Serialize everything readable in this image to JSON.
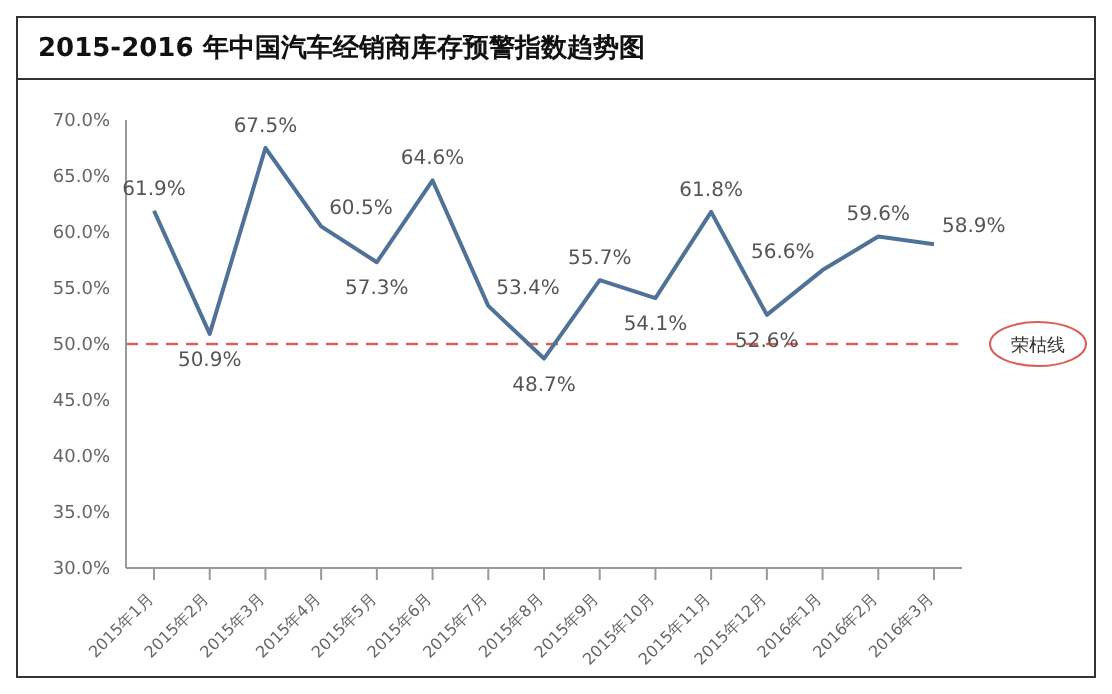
{
  "chart_data": {
    "type": "line",
    "title": "2015-2016 年中国汽车经销商库存预警指数趋势图",
    "categories": [
      "2015年1月",
      "2015年2月",
      "2015年3月",
      "2015年4月",
      "2015年5月",
      "2015年6月",
      "2015年7月",
      "2015年8月",
      "2015年9月",
      "2015年10月",
      "2015年11月",
      "2015年12月",
      "2016年1月",
      "2016年2月",
      "2016年3月"
    ],
    "series": [
      {
        "color": "#4f7298",
        "values": [
          61.9,
          50.9,
          67.5,
          60.5,
          57.3,
          64.6,
          53.4,
          48.7,
          55.7,
          54.1,
          61.8,
          52.6,
          56.6,
          59.6,
          58.9
        ],
        "value_labels": [
          "61.9%",
          "50.9%",
          "67.5%",
          "60.5%",
          "57.3%",
          "64.6%",
          "53.4%",
          "48.7%",
          "55.7%",
          "54.1%",
          "61.8%",
          "52.6%",
          "56.6%",
          "59.6%",
          "58.9%"
        ]
      }
    ],
    "ylim": [
      30,
      70
    ],
    "yticks": [
      {
        "value": 30,
        "label": "30.0%"
      },
      {
        "value": 35,
        "label": "35.0%"
      },
      {
        "value": 40,
        "label": "40.0%"
      },
      {
        "value": 45,
        "label": "45.0%"
      },
      {
        "value": 50,
        "label": "50.0%"
      },
      {
        "value": 55,
        "label": "55.0%"
      },
      {
        "value": 60,
        "label": "60.0%"
      },
      {
        "value": 65,
        "label": "65.0%"
      },
      {
        "value": 70,
        "label": "70.0%"
      }
    ],
    "ref_lines": [
      {
        "axis": "y",
        "value": 50,
        "label": "荣枯线",
        "color": "#d9605a",
        "line_style": "dashed"
      }
    ],
    "grid": false,
    "legend": false,
    "marker": "none",
    "line_style": "solid"
  }
}
